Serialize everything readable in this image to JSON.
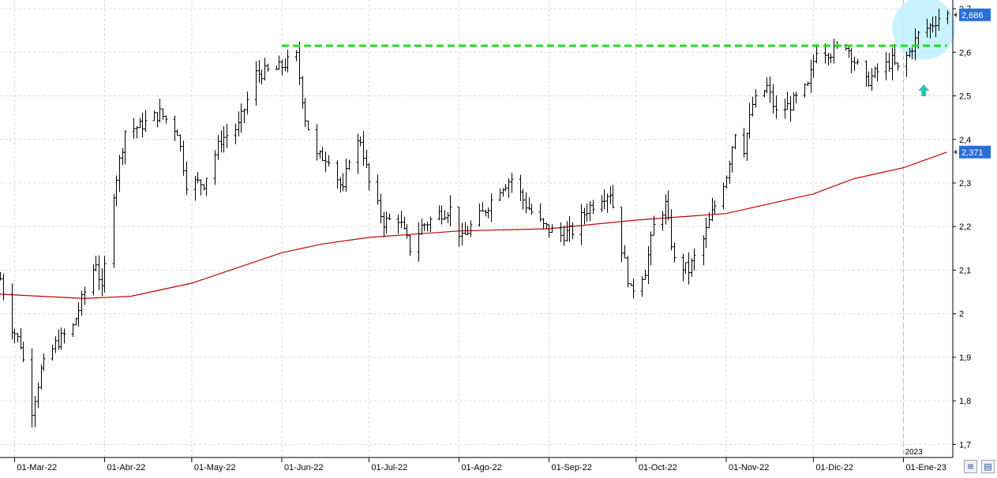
{
  "chart_data": {
    "type": "ohlc-bar",
    "title": "",
    "xlabel": "",
    "ylabel": "",
    "ylim": [
      1.67,
      2.72
    ],
    "y_ticks": [
      1.7,
      1.8,
      1.9,
      2.0,
      2.1,
      2.2,
      2.3,
      2.4,
      2.5,
      2.6,
      2.7
    ],
    "y_tick_labels": [
      "1,7",
      "1,8",
      "1,9",
      "2",
      "2,1",
      "2,2",
      "2,3",
      "2,4",
      "2,5",
      "2,6",
      "2,7"
    ],
    "x_range": [
      "2022-02-24",
      "2023-01-18"
    ],
    "x_ticks": [
      {
        "date": "2022-03-01",
        "label": "01-Mar-22"
      },
      {
        "date": "2022-04-01",
        "label": "01-Abr-22"
      },
      {
        "date": "2022-05-01",
        "label": "01-May-22"
      },
      {
        "date": "2022-06-01",
        "label": "01-Jun-22"
      },
      {
        "date": "2022-07-01",
        "label": "01-Jul-22"
      },
      {
        "date": "2022-08-01",
        "label": "01-Ago-22"
      },
      {
        "date": "2022-09-01",
        "label": "01-Sep-22"
      },
      {
        "date": "2022-10-01",
        "label": "01-Oct-22"
      },
      {
        "date": "2022-11-01",
        "label": "01-Nov-22"
      },
      {
        "date": "2022-12-01",
        "label": "01-Dic-22"
      },
      {
        "date": "2023-01-01",
        "label": "01-Ene-23"
      }
    ],
    "year_marker": {
      "date": "2023-01-01",
      "label": "2023"
    },
    "grid": true,
    "price_anchors": [
      [
        "2022-02-24",
        2.08
      ],
      [
        "2022-02-28",
        1.97
      ],
      [
        "2022-03-03",
        1.93
      ],
      [
        "2022-03-07",
        1.78
      ],
      [
        "2022-03-10",
        1.87
      ],
      [
        "2022-03-15",
        1.93
      ],
      [
        "2022-03-21",
        1.97
      ],
      [
        "2022-03-25",
        2.05
      ],
      [
        "2022-03-29",
        2.12
      ],
      [
        "2022-03-31",
        2.05
      ],
      [
        "2022-04-04",
        2.28
      ],
      [
        "2022-04-08",
        2.42
      ],
      [
        "2022-04-13",
        2.43
      ],
      [
        "2022-04-20",
        2.46
      ],
      [
        "2022-04-26",
        2.42
      ],
      [
        "2022-04-29",
        2.3
      ],
      [
        "2022-05-05",
        2.3
      ],
      [
        "2022-05-11",
        2.4
      ],
      [
        "2022-05-17",
        2.43
      ],
      [
        "2022-05-23",
        2.55
      ],
      [
        "2022-05-30",
        2.56
      ],
      [
        "2022-06-06",
        2.59
      ],
      [
        "2022-06-09",
        2.45
      ],
      [
        "2022-06-13",
        2.36
      ],
      [
        "2022-06-17",
        2.36
      ],
      [
        "2022-06-22",
        2.28
      ],
      [
        "2022-06-24",
        2.36
      ],
      [
        "2022-06-28",
        2.4
      ],
      [
        "2022-07-01",
        2.3
      ],
      [
        "2022-07-06",
        2.21
      ],
      [
        "2022-07-11",
        2.22
      ],
      [
        "2022-07-15",
        2.15
      ],
      [
        "2022-07-19",
        2.2
      ],
      [
        "2022-07-25",
        2.23
      ],
      [
        "2022-07-29",
        2.24
      ],
      [
        "2022-08-02",
        2.17
      ],
      [
        "2022-08-05",
        2.2
      ],
      [
        "2022-08-09",
        2.23
      ],
      [
        "2022-08-15",
        2.29
      ],
      [
        "2022-08-19",
        2.31
      ],
      [
        "2022-08-24",
        2.25
      ],
      [
        "2022-08-30",
        2.2
      ],
      [
        "2022-09-05",
        2.18
      ],
      [
        "2022-09-09",
        2.19
      ],
      [
        "2022-09-14",
        2.24
      ],
      [
        "2022-09-19",
        2.27
      ],
      [
        "2022-09-22",
        2.28
      ],
      [
        "2022-09-26",
        2.15
      ],
      [
        "2022-09-29",
        2.05
      ],
      [
        "2022-10-04",
        2.1
      ],
      [
        "2022-10-07",
        2.2
      ],
      [
        "2022-10-11",
        2.25
      ],
      [
        "2022-10-14",
        2.12
      ],
      [
        "2022-10-19",
        2.1
      ],
      [
        "2022-10-24",
        2.17
      ],
      [
        "2022-10-27",
        2.23
      ],
      [
        "2022-11-01",
        2.32
      ],
      [
        "2022-11-04",
        2.42
      ],
      [
        "2022-11-07",
        2.38
      ],
      [
        "2022-11-10",
        2.48
      ],
      [
        "2022-11-15",
        2.52
      ],
      [
        "2022-11-18",
        2.46
      ],
      [
        "2022-11-23",
        2.48
      ],
      [
        "2022-11-29",
        2.52
      ],
      [
        "2022-12-02",
        2.61
      ],
      [
        "2022-12-07",
        2.6
      ],
      [
        "2022-12-12",
        2.62
      ],
      [
        "2022-12-15",
        2.58
      ],
      [
        "2022-12-19",
        2.53
      ],
      [
        "2022-12-22",
        2.55
      ],
      [
        "2022-12-28",
        2.58
      ],
      [
        "2022-12-30",
        2.56
      ],
      [
        "2023-01-03",
        2.6
      ],
      [
        "2023-01-06",
        2.64
      ],
      [
        "2023-01-10",
        2.66
      ],
      [
        "2023-01-13",
        2.68
      ],
      [
        "2023-01-16",
        2.686
      ]
    ],
    "moving_average": {
      "color": "#c40000",
      "points": [
        [
          "2022-02-24",
          2.045
        ],
        [
          "2022-03-10",
          2.04
        ],
        [
          "2022-03-25",
          2.035
        ],
        [
          "2022-04-10",
          2.04
        ],
        [
          "2022-05-01",
          2.07
        ],
        [
          "2022-06-01",
          2.14
        ],
        [
          "2022-06-15",
          2.16
        ],
        [
          "2022-07-01",
          2.175
        ],
        [
          "2022-08-01",
          2.19
        ],
        [
          "2022-09-01",
          2.195
        ],
        [
          "2022-10-01",
          2.215
        ],
        [
          "2022-11-01",
          2.23
        ],
        [
          "2022-12-01",
          2.275
        ],
        [
          "2022-12-15",
          2.31
        ],
        [
          "2023-01-01",
          2.335
        ],
        [
          "2023-01-16",
          2.371
        ]
      ]
    },
    "resistance_line": {
      "value": 2.615,
      "from": "2022-06-01",
      "to": "2023-01-16",
      "color": "#22dd22"
    },
    "highlight_circle": {
      "date": "2023-01-08",
      "value": 2.655,
      "color": "#bff0ff"
    },
    "signal_arrow": {
      "date": "2023-01-08",
      "value": 2.51,
      "color": "#2ec4b6"
    },
    "last_price": {
      "value": 2.686,
      "label": "2,686",
      "color": "#2a6fd8"
    },
    "ma_last": {
      "value": 2.371,
      "label": "2,371",
      "color": "#2a6fd8"
    }
  },
  "colors": {
    "bars": "#000000",
    "grid": "#d9d9d9",
    "axis": "#000000",
    "background": "#ffffff"
  },
  "controls": {
    "zoom_icon": "waveform-icon",
    "save_icon": "floppy-disk-icon"
  }
}
